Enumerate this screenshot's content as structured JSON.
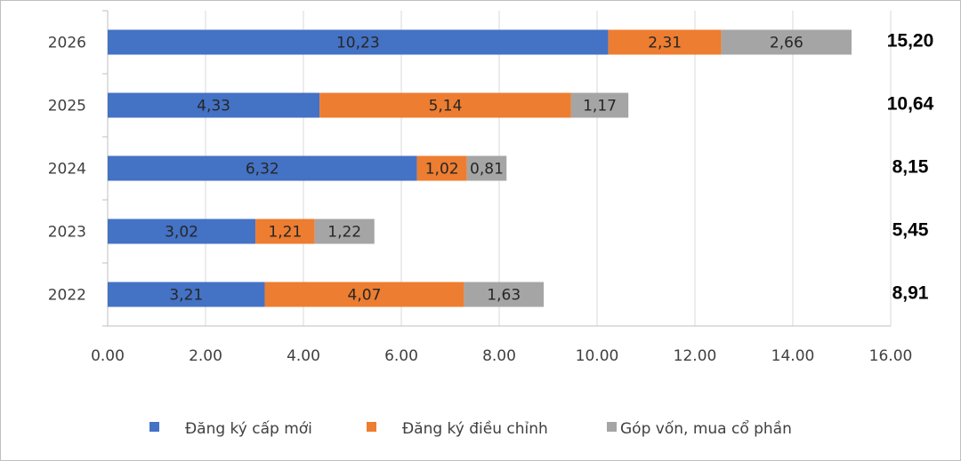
{
  "chart_data": {
    "type": "bar",
    "orientation": "horizontal",
    "stacked": true,
    "categories": [
      "2026",
      "2025",
      "2024",
      "2023",
      "2022"
    ],
    "series": [
      {
        "name": "Đăng ký cấp mới",
        "color": "#4472c4",
        "values": [
          10.23,
          4.33,
          6.32,
          3.02,
          3.21
        ],
        "labels": [
          "10,23",
          "4,33",
          "6,32",
          "3,02",
          "3,21"
        ]
      },
      {
        "name": "Đăng ký điều chỉnh",
        "color": "#ed7d31",
        "values": [
          2.31,
          5.14,
          1.02,
          1.21,
          4.07
        ],
        "labels": [
          "2,31",
          "5,14",
          "1,02",
          "1,21",
          "4,07"
        ]
      },
      {
        "name": "Góp vốn, mua cổ phần",
        "color": "#a5a5a5",
        "values": [
          2.66,
          1.17,
          0.81,
          1.22,
          1.63
        ],
        "labels": [
          "2,66",
          "1,17",
          "0,81",
          "1,22",
          "1,63"
        ]
      }
    ],
    "totals": [
      "15,20",
      "10,64",
      "8,15",
      "5,45",
      "8,91"
    ],
    "xlim": [
      0,
      16
    ],
    "x_ticks": [
      "0.00",
      "2.00",
      "4.00",
      "6.00",
      "8.00",
      "10.00",
      "12.00",
      "14.00",
      "16.00"
    ],
    "grid": true,
    "legend_position": "bottom",
    "title": "",
    "xlabel": "",
    "ylabel": ""
  }
}
